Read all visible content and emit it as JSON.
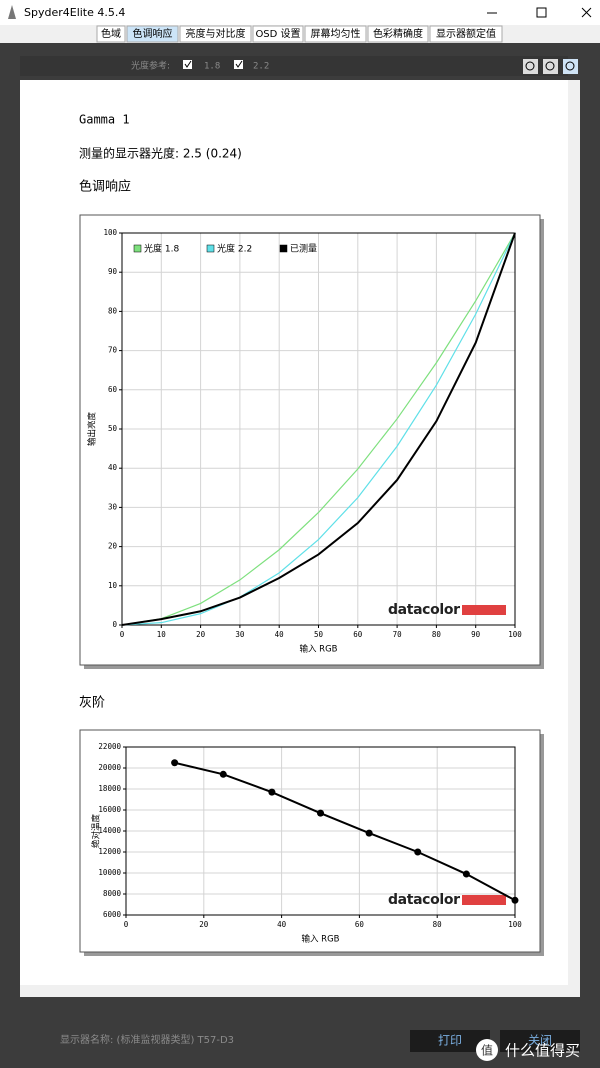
{
  "window": {
    "title": "Spyder4Elite 4.5.4"
  },
  "tabs": [
    "色域",
    "色调响应",
    "亮度与对比度",
    "OSD 设置",
    "屏幕均匀性",
    "色彩精确度",
    "显示器额定值"
  ],
  "toolbar": {
    "label": "光度参考:",
    "options": [
      "1.8",
      "2.2"
    ]
  },
  "report": {
    "heading": "Gamma 1",
    "luminance": "测量的显示器光度:  2.5 (0.24)",
    "sections": [
      "色调响应",
      "灰阶"
    ]
  },
  "chart_data": [
    {
      "type": "line",
      "x": [
        0,
        10,
        20,
        30,
        40,
        50,
        60,
        70,
        80,
        90,
        100
      ],
      "series": [
        {
          "name": "光度 1.8",
          "color": "#7ee07e",
          "values": [
            0,
            1.6,
            5.5,
            11.5,
            19.2,
            28.7,
            39.8,
            52.6,
            66.9,
            82.7,
            100
          ]
        },
        {
          "name": "光度 2.2",
          "color": "#5fe0e8",
          "values": [
            0,
            0.6,
            2.9,
            7.1,
            13.3,
            21.8,
            32.5,
            45.6,
            61.2,
            79.3,
            100
          ]
        },
        {
          "name": "已测量",
          "color": "#000000",
          "values": [
            0,
            1.5,
            3.5,
            7,
            12,
            18,
            26,
            37,
            52,
            72,
            100
          ]
        }
      ],
      "xlim": [
        0,
        100
      ],
      "ylim": [
        0,
        100
      ],
      "xticks": [
        0,
        10,
        20,
        30,
        40,
        50,
        60,
        70,
        80,
        90,
        100
      ],
      "yticks": [
        0,
        10,
        20,
        30,
        40,
        50,
        60,
        70,
        80,
        90,
        100
      ],
      "xlabel": "输入 RGB",
      "ylabel": "输出亮度",
      "grid": true,
      "legend": "upper left",
      "logo": "datacolor"
    },
    {
      "type": "line",
      "x": [
        12.5,
        25,
        37.5,
        50,
        62.5,
        75,
        87.5,
        100
      ],
      "values": [
        20500,
        19400,
        17700,
        15700,
        13800,
        12000,
        9900,
        7400
      ],
      "color": "#000000",
      "markers": true,
      "xlim": [
        0,
        100
      ],
      "ylim": [
        6000,
        22000
      ],
      "xticks": [
        0,
        20,
        40,
        60,
        80,
        100
      ],
      "yticks": [
        6000,
        8000,
        10000,
        12000,
        14000,
        16000,
        18000,
        20000,
        22000
      ],
      "xlabel": "输入 RGB",
      "ylabel": "绝对温度",
      "grid": true,
      "logo": "datacolor"
    }
  ],
  "footer": {
    "display_name": "显示器名称: (标准监视器类型) T57-D3",
    "buttons": [
      "打印",
      "关闭"
    ]
  },
  "watermark": {
    "logo": "值",
    "text": "什么值得买"
  }
}
